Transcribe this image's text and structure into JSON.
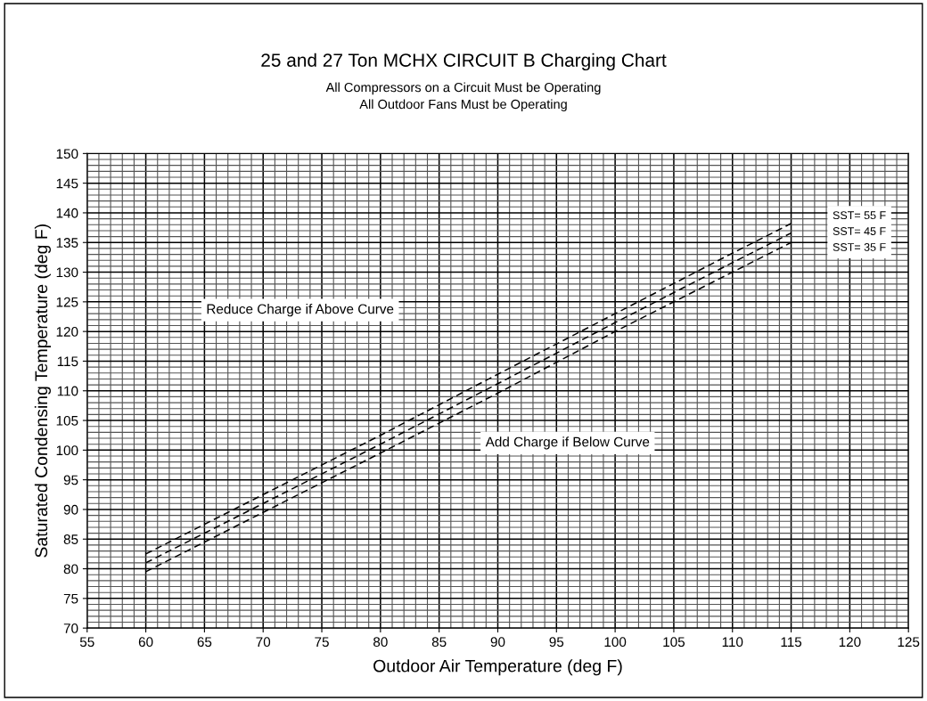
{
  "chart_data": {
    "type": "line",
    "title": "25 and 27 Ton MCHX CIRCUIT B Charging Chart",
    "subtitle": "All Compressors on a Circuit Must be Operating\nAll Outdoor Fans Must be Operating",
    "xlabel": "Outdoor Air Temperature (deg F)",
    "ylabel": "Saturated Condensing Temperature (deg F)",
    "x": [
      60,
      70,
      80,
      90,
      100,
      110,
      115
    ],
    "series": [
      {
        "name": "SST= 55 F",
        "color": "#000000",
        "values": [
          82.5,
          92.5,
          102.5,
          112.8,
          123,
          133.2,
          138.2
        ]
      },
      {
        "name": "SST= 45 F",
        "color": "#000000",
        "values": [
          81,
          91,
          101,
          111.2,
          121.5,
          131.6,
          136.6
        ]
      },
      {
        "name": "SST= 35 F",
        "color": "#000000",
        "values": [
          79.5,
          89.5,
          99.5,
          109.6,
          120,
          130,
          135
        ]
      }
    ],
    "line_style": "dashed",
    "marker": "none",
    "grid": true,
    "legend": "top right",
    "xlim": [
      55,
      125
    ],
    "xticks": [
      55,
      60,
      65,
      70,
      75,
      80,
      85,
      90,
      95,
      100,
      105,
      110,
      115,
      120,
      125
    ],
    "ylim": [
      70,
      150
    ],
    "yticks": [
      70,
      75,
      80,
      85,
      90,
      95,
      100,
      105,
      110,
      115,
      120,
      125,
      130,
      135,
      140,
      145,
      150
    ],
    "annotations": [
      "Reduce Charge if Above Curve",
      "Add Charge if Below Curve"
    ]
  }
}
